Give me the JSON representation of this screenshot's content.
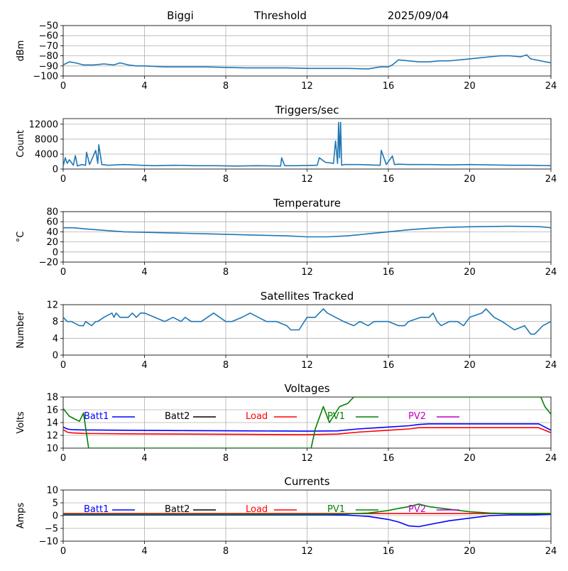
{
  "header": {
    "station": "Biggi",
    "mode": "Threshold",
    "date": "2025/09/04"
  },
  "colors": {
    "series": "#1f77b4",
    "grid": "#b0b0b0",
    "axis": "#000000",
    "batt1": "#0000ff",
    "batt2": "#000000",
    "load": "#ff0000",
    "pv1": "#008000",
    "pv2": "#bf00bf"
  },
  "chart_data": [
    {
      "type": "line",
      "title": "",
      "ylabel": "dBm",
      "xlabel": "",
      "xlim": [
        0,
        24
      ],
      "ylim": [
        -100,
        -50
      ],
      "xticks": [
        "0",
        "4",
        "8",
        "12",
        "16",
        "20",
        "24"
      ],
      "yticks": [
        "−50",
        "−60",
        "−70",
        "−80",
        "−90",
        "−100"
      ],
      "grid": true,
      "series": [
        {
          "x": [
            0,
            0.3,
            0.6,
            1,
            1.5,
            2,
            2.5,
            2.8,
            3.2,
            3.6,
            4,
            5,
            6,
            7,
            8,
            9,
            10,
            11,
            12,
            13,
            14,
            15,
            15.6,
            16,
            16.2,
            16.5,
            17,
            17.5,
            18,
            18.5,
            19,
            19.5,
            20,
            20.5,
            21,
            21.5,
            22,
            22.5,
            22.8,
            23,
            23.5,
            24
          ],
          "y": [
            -89,
            -86,
            -87,
            -89,
            -89,
            -88,
            -89,
            -87,
            -89,
            -90,
            -90,
            -91,
            -91,
            -91,
            -91.5,
            -92,
            -92,
            -92,
            -92.5,
            -92.5,
            -92.5,
            -93,
            -91,
            -91,
            -89,
            -84,
            -85,
            -86,
            -86,
            -85,
            -85,
            -84,
            -83,
            -82,
            -81,
            -80,
            -80,
            -81,
            -79,
            -83,
            -85,
            -87
          ]
        }
      ]
    },
    {
      "type": "line",
      "title": "Triggers/sec",
      "ylabel": "Count",
      "xlabel": "",
      "xlim": [
        0,
        24
      ],
      "ylim": [
        0,
        13500
      ],
      "xticks": [
        "0",
        "4",
        "8",
        "12",
        "16",
        "20",
        "24"
      ],
      "yticks": [
        "0",
        "4000",
        "8000",
        "12000"
      ],
      "grid": true,
      "series": [
        {
          "x": [
            0,
            0.1,
            0.2,
            0.3,
            0.5,
            0.6,
            0.7,
            0.9,
            1.1,
            1.15,
            1.3,
            1.6,
            1.7,
            1.75,
            1.9,
            2.2,
            3,
            3.8,
            4.5,
            5.5,
            6.5,
            7.5,
            8.5,
            9.5,
            10.7,
            10.75,
            10.9,
            11.5,
            12.5,
            12.6,
            12.9,
            13.3,
            13.4,
            13.5,
            13.55,
            13.6,
            13.65,
            13.7,
            13.8,
            14.5,
            15.6,
            15.65,
            15.9,
            16.2,
            16.3,
            16.5,
            17,
            18,
            19,
            20,
            21,
            22,
            23,
            24
          ],
          "y": [
            800,
            3000,
            1500,
            2500,
            1000,
            3600,
            800,
            1200,
            1000,
            4500,
            1200,
            5000,
            1500,
            6500,
            1200,
            1000,
            1200,
            1000,
            900,
            1000,
            900,
            900,
            800,
            900,
            800,
            3000,
            900,
            900,
            1000,
            3000,
            1800,
            1500,
            7500,
            1500,
            12500,
            3000,
            12500,
            1000,
            1200,
            1200,
            1000,
            5000,
            1200,
            3500,
            1200,
            1300,
            1200,
            1200,
            1100,
            1200,
            1100,
            1000,
            1000,
            900
          ]
        }
      ]
    },
    {
      "type": "line",
      "title": "Temperature",
      "ylabel": "°C",
      "xlabel": "",
      "xlim": [
        0,
        24
      ],
      "ylim": [
        -20,
        80
      ],
      "xticks": [
        "0",
        "4",
        "8",
        "12",
        "16",
        "20",
        "24"
      ],
      "yticks": [
        "80",
        "60",
        "40",
        "20",
        "0",
        "−20"
      ],
      "grid": true,
      "series": [
        {
          "x": [
            0,
            0.5,
            1,
            2,
            3,
            4,
            5,
            6,
            7,
            8,
            9,
            10,
            11,
            12,
            13,
            14,
            15,
            16,
            17,
            18,
            19,
            20,
            21,
            22,
            23,
            23.5,
            24
          ],
          "y": [
            48,
            48,
            46,
            43,
            40,
            39,
            38,
            37,
            36,
            35,
            34,
            33,
            32,
            30,
            30,
            32,
            36,
            40,
            44,
            47,
            49,
            50,
            50.5,
            51,
            50.5,
            50,
            48
          ]
        }
      ]
    },
    {
      "type": "line",
      "title": "Satellites Tracked",
      "ylabel": "Number",
      "xlabel": "",
      "xlim": [
        0,
        24
      ],
      "ylim": [
        0,
        12
      ],
      "xticks": [
        "0",
        "4",
        "8",
        "12",
        "16",
        "20",
        "24"
      ],
      "yticks": [
        "12",
        "8",
        "4",
        "0"
      ],
      "grid": true,
      "series": [
        {
          "x": [
            0,
            0.2,
            0.4,
            0.8,
            1,
            1.1,
            1.4,
            1.6,
            1.7,
            2,
            2.4,
            2.5,
            2.6,
            2.8,
            2.9,
            3.2,
            3.4,
            3.6,
            3.8,
            4,
            4.5,
            5,
            5.4,
            5.8,
            6,
            6.3,
            6.8,
            7.1,
            7.4,
            7.7,
            8,
            8.3,
            8.8,
            9.2,
            9.6,
            10,
            10.5,
            11,
            11.2,
            11.6,
            12,
            12.4,
            12.6,
            12.8,
            13,
            13.4,
            13.8,
            14.3,
            14.6,
            15,
            15.3,
            15.6,
            16,
            16.5,
            16.8,
            17,
            17.6,
            18,
            18.2,
            18.4,
            18.6,
            19,
            19.4,
            19.7,
            20,
            20.6,
            20.8,
            21,
            21.2,
            21.6,
            21.9,
            22.2,
            22.7,
            23,
            23.2,
            23.6,
            24
          ],
          "y": [
            9,
            8,
            8,
            7,
            7,
            8,
            7,
            8,
            8,
            9,
            10,
            9,
            10,
            9,
            9,
            9,
            10,
            9,
            10,
            10,
            9,
            8,
            9,
            8,
            9,
            8,
            8,
            9,
            10,
            9,
            8,
            8,
            9,
            10,
            9,
            8,
            8,
            7,
            6,
            6,
            9,
            9,
            10,
            11,
            10,
            9,
            8,
            7,
            8,
            7,
            8,
            8,
            8,
            7,
            7,
            8,
            9,
            9,
            10,
            8,
            7,
            8,
            8,
            7,
            9,
            10,
            11,
            10,
            9,
            8,
            7,
            6,
            7,
            5,
            5,
            7,
            8
          ]
        }
      ]
    },
    {
      "type": "line",
      "title": "Voltages",
      "ylabel": "Volts",
      "xlabel": "",
      "xlim": [
        0,
        24
      ],
      "ylim": [
        10,
        18
      ],
      "xticks": [
        "0",
        "4",
        "8",
        "12",
        "16",
        "20",
        "24"
      ],
      "yticks": [
        "18",
        "16",
        "14",
        "12",
        "10"
      ],
      "grid": true,
      "legend_placement": "top",
      "series": [
        {
          "name": "Batt1",
          "x": [
            0,
            0.2,
            0.4,
            1,
            3,
            6,
            9,
            12,
            13.5,
            14.5,
            15.5,
            16,
            17,
            17.5,
            18,
            20,
            22,
            23.4,
            24
          ],
          "y": [
            13.3,
            13,
            12.9,
            12.85,
            12.8,
            12.75,
            12.7,
            12.65,
            12.7,
            13,
            13.2,
            13.3,
            13.5,
            13.7,
            13.8,
            13.8,
            13.8,
            13.8,
            12.8
          ]
        },
        {
          "name": "Batt2",
          "x": [],
          "y": []
        },
        {
          "name": "Load",
          "x": [
            0,
            0.2,
            0.4,
            1,
            3,
            6,
            9,
            12,
            13.5,
            14.5,
            15.5,
            16,
            17,
            17.5,
            18,
            20,
            22,
            23.4,
            24
          ],
          "y": [
            12.9,
            12.5,
            12.4,
            12.3,
            12.25,
            12.2,
            12.15,
            12.1,
            12.2,
            12.5,
            12.7,
            12.8,
            13,
            13.2,
            13.2,
            13.2,
            13.2,
            13.2,
            12.4
          ]
        },
        {
          "name": "PV1",
          "x": [
            0,
            0.3,
            0.6,
            0.8,
            1,
            1.25,
            12.2,
            12.4,
            12.8,
            13.1,
            13.6,
            14,
            14.3,
            23.5,
            23.7,
            24
          ],
          "y": [
            16.2,
            15,
            14.5,
            14.2,
            15.5,
            10,
            10,
            13,
            16.5,
            14,
            16.5,
            17,
            18,
            18,
            16.5,
            15.3
          ]
        },
        {
          "name": "PV2",
          "x": [],
          "y": []
        }
      ]
    },
    {
      "type": "line",
      "title": "Currents",
      "ylabel": "Amps",
      "xlabel": "",
      "xlim": [
        0,
        24
      ],
      "ylim": [
        -10,
        10
      ],
      "xticks": [
        "0",
        "4",
        "8",
        "12",
        "16",
        "20",
        "24"
      ],
      "yticks": [
        "10",
        "5",
        "0",
        "−5",
        "−10"
      ],
      "grid": true,
      "legend_placement": "top",
      "series": [
        {
          "name": "Batt1",
          "x": [
            0,
            2,
            6,
            10,
            13,
            14,
            15,
            16,
            16.5,
            17,
            17.5,
            18,
            19,
            20,
            21,
            22,
            23,
            24
          ],
          "y": [
            0.3,
            0.3,
            0.3,
            0.3,
            0.3,
            0.2,
            -0.3,
            -1.5,
            -2.5,
            -4,
            -4.3,
            -3.5,
            -2,
            -1,
            0,
            0.3,
            0.3,
            0.5
          ]
        },
        {
          "name": "Batt2",
          "x": [],
          "y": []
        },
        {
          "name": "Load",
          "x": [
            0,
            24
          ],
          "y": [
            0.8,
            0.8
          ]
        },
        {
          "name": "PV1",
          "x": [
            0,
            2,
            6,
            10,
            13,
            14,
            15,
            16,
            16.5,
            17,
            17.5,
            18,
            19,
            20,
            21,
            22,
            23,
            24
          ],
          "y": [
            0.5,
            0.5,
            0.5,
            0.5,
            0.6,
            0.7,
            1,
            2,
            2.8,
            3.5,
            4.5,
            3.5,
            2.5,
            1.5,
            1,
            0.8,
            0.8,
            0.8
          ]
        },
        {
          "name": "PV2",
          "x": [],
          "y": []
        }
      ]
    }
  ]
}
